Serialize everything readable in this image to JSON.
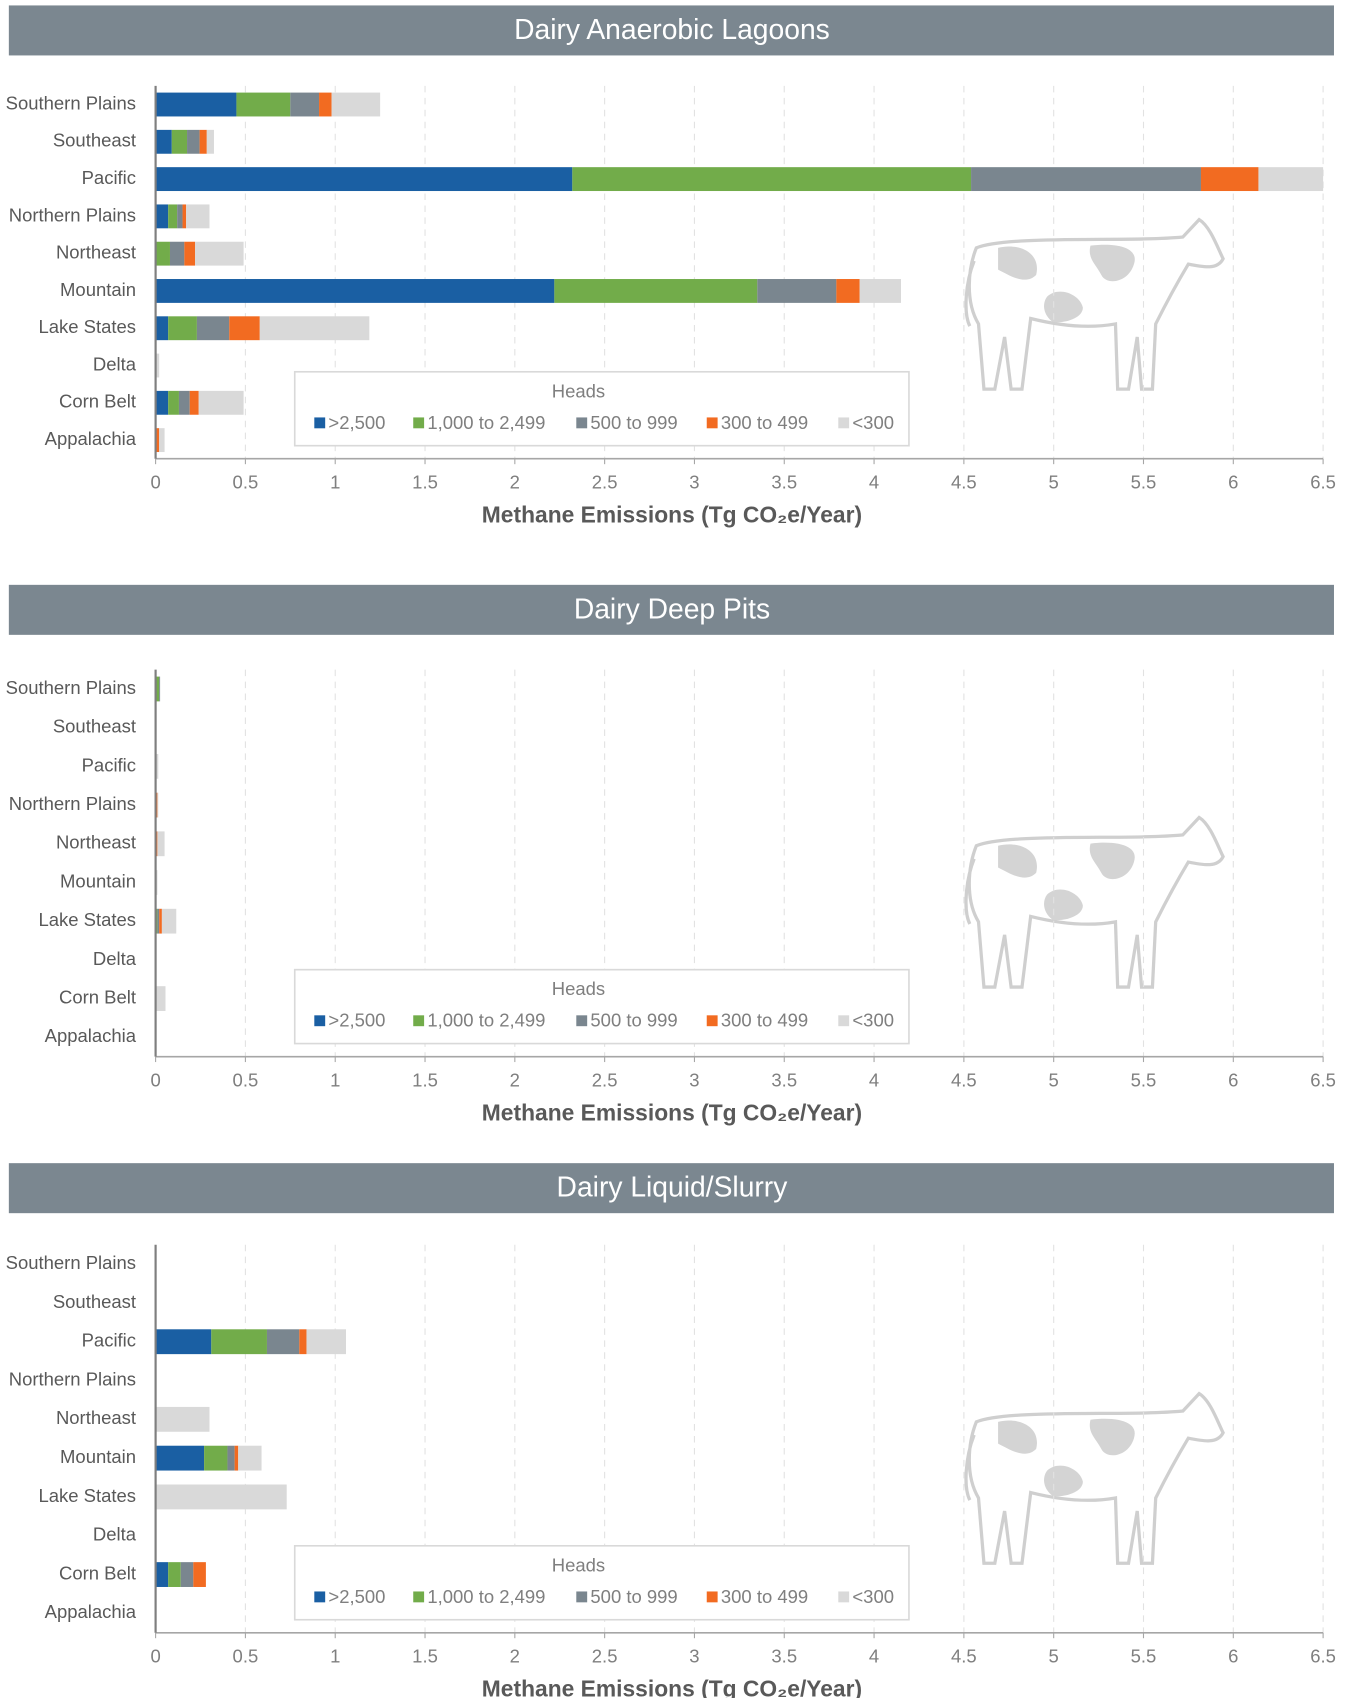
{
  "chart_data": [
    {
      "type": "stacked-bar-horizontal",
      "title": "Dairy Anaerobic Lagoons",
      "categories": [
        "Southern Plains",
        "Southeast",
        "Pacific",
        "Northern Plains",
        "Northeast",
        "Mountain",
        "Lake States",
        "Delta",
        "Corn Belt",
        "Appalachia"
      ],
      "series": [
        {
          "name": ">2,500",
          "color": "#1a5fa3",
          "values": [
            0.45,
            0.09,
            2.32,
            0.07,
            0,
            2.22,
            0.07,
            0,
            0.07,
            0
          ]
        },
        {
          "name": "1,000 to 2,499",
          "color": "#72ac4a",
          "values": [
            0.3,
            0.085,
            2.22,
            0.05,
            0.08,
            1.13,
            0.16,
            0,
            0.06,
            0
          ]
        },
        {
          "name": "500 to 999",
          "color": "#7a868f",
          "values": [
            0.16,
            0.07,
            1.28,
            0.03,
            0.08,
            0.44,
            0.18,
            0,
            0.06,
            0
          ]
        },
        {
          "name": "300 to 499",
          "color": "#f26b21",
          "values": [
            0.07,
            0.04,
            0.32,
            0.02,
            0.06,
            0.13,
            0.17,
            0,
            0.05,
            0.02
          ]
        },
        {
          "name": "<300",
          "color": "#d9d9d9",
          "values": [
            0.27,
            0.04,
            0.36,
            0.13,
            0.27,
            0.23,
            0.61,
            0.02,
            0.25,
            0.03
          ]
        }
      ],
      "xlabel": "Methane Emissions (Tg CO₂e/Year)",
      "legend_title": "Heads",
      "legend": "bottom",
      "xlim": [
        0,
        6.5
      ],
      "xticks": [
        0,
        0.5,
        1,
        1.5,
        2,
        2.5,
        3,
        3.5,
        4,
        4.5,
        5,
        5.5,
        6,
        6.5
      ],
      "grid": true
    },
    {
      "type": "stacked-bar-horizontal",
      "title": "Dairy Deep Pits",
      "categories": [
        "Southern Plains",
        "Southeast",
        "Pacific",
        "Northern Plains",
        "Northeast",
        "Mountain",
        "Lake States",
        "Delta",
        "Corn Belt",
        "Appalachia"
      ],
      "series": [
        {
          "name": ">2,500",
          "color": "#1a5fa3",
          "values": [
            0.005,
            0,
            0,
            0,
            0,
            0,
            0,
            0,
            0,
            0
          ]
        },
        {
          "name": "1,000 to 2,499",
          "color": "#72ac4a",
          "values": [
            0.015,
            0,
            0,
            0,
            0,
            0,
            0.01,
            0,
            0,
            0
          ]
        },
        {
          "name": "500 to 999",
          "color": "#7a868f",
          "values": [
            0.005,
            0,
            0.005,
            0,
            0,
            0,
            0.01,
            0,
            0,
            0
          ]
        },
        {
          "name": "300 to 499",
          "color": "#f26b21",
          "values": [
            0,
            0,
            0,
            0.01,
            0.01,
            0.005,
            0.015,
            0,
            0.005,
            0
          ]
        },
        {
          "name": "<300",
          "color": "#d9d9d9",
          "values": [
            0,
            0,
            0.01,
            0.005,
            0.04,
            0.005,
            0.08,
            0,
            0.05,
            0
          ]
        }
      ],
      "xlabel": "Methane Emissions (Tg CO₂e/Year)",
      "legend_title": "Heads",
      "legend": "bottom",
      "xlim": [
        0,
        6.5
      ],
      "xticks": [
        0,
        0.5,
        1,
        1.5,
        2,
        2.5,
        3,
        3.5,
        4,
        4.5,
        5,
        5.5,
        6,
        6.5
      ],
      "grid": true
    },
    {
      "type": "stacked-bar-horizontal",
      "title": "Dairy Liquid/Slurry",
      "categories": [
        "Southern Plains",
        "Southeast",
        "Pacific",
        "Northern Plains",
        "Northeast",
        "Mountain",
        "Lake States",
        "Delta",
        "Corn Belt",
        "Appalachia"
      ],
      "series": [
        {
          "name": ">2,500",
          "color": "#1a5fa3",
          "values": [
            0,
            0,
            0.31,
            0,
            0,
            0.27,
            0,
            0,
            0.07,
            0
          ]
        },
        {
          "name": "1,000 to 2,499",
          "color": "#72ac4a",
          "values": [
            0,
            0,
            0.31,
            0,
            0,
            0.13,
            0,
            0,
            0.07,
            0
          ]
        },
        {
          "name": "500 to 999",
          "color": "#7a868f",
          "values": [
            0,
            0,
            0.18,
            0,
            0,
            0.04,
            0,
            0,
            0.07,
            0
          ]
        },
        {
          "name": "300 to 499",
          "color": "#f26b21",
          "values": [
            0,
            0,
            0.04,
            0,
            0,
            0.02,
            0,
            0,
            0.07,
            0
          ]
        },
        {
          "name": "<300",
          "color": "#d9d9d9",
          "values": [
            0,
            0,
            0.22,
            0,
            0.3,
            0.13,
            0.73,
            0,
            0,
            0
          ]
        }
      ],
      "xlabel": "Methane Emissions (Tg CO₂e/Year)",
      "legend_title": "Heads",
      "legend": "bottom",
      "xlim": [
        0,
        6.5
      ],
      "xticks": [
        0,
        0.5,
        1,
        1.5,
        2,
        2.5,
        3,
        3.5,
        4,
        4.5,
        5,
        5.5,
        6,
        6.5
      ],
      "grid": true
    }
  ]
}
